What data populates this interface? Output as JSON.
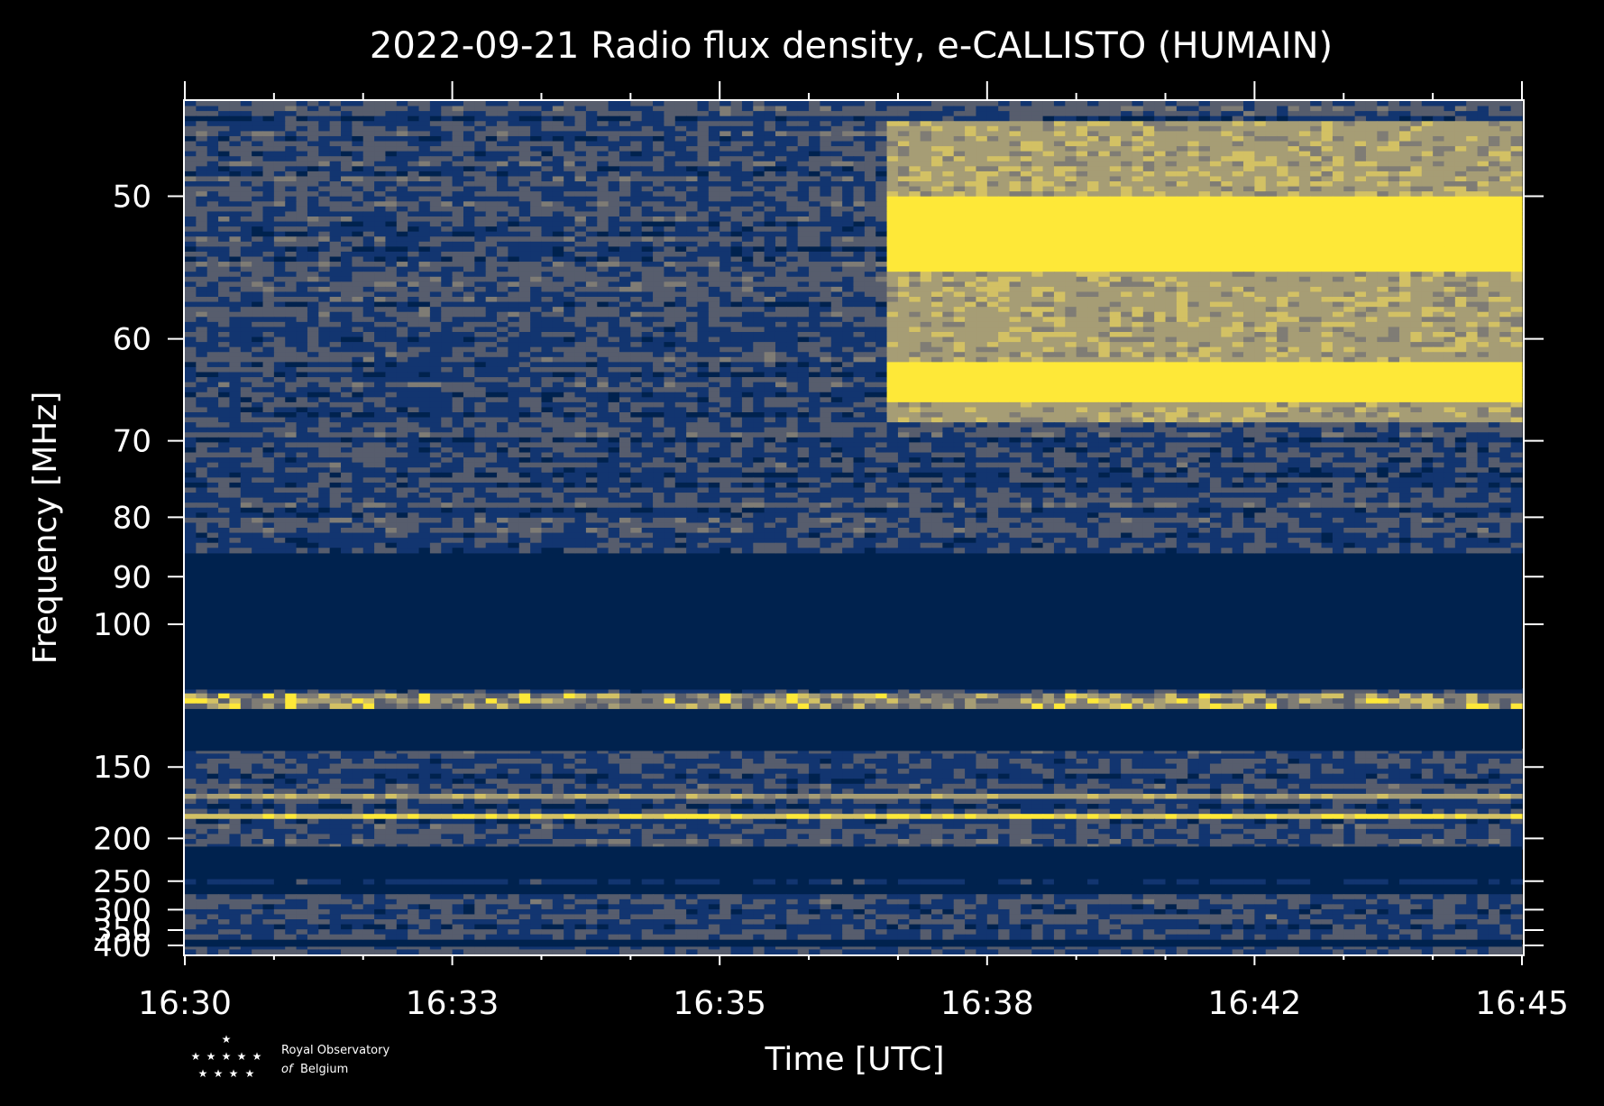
{
  "chart_data": {
    "type": "heatmap",
    "title": "2022-09-21 Radio flux density, e-CALLISTO (HUMAIN)",
    "xlabel": "Time [UTC]",
    "ylabel": "Frequency [MHz]",
    "x_ticks": [
      "16:30",
      "16:33",
      "16:35",
      "16:38",
      "16:42",
      "16:45"
    ],
    "x_range_minutes": [
      0,
      15
    ],
    "y_ticks": [
      50,
      60,
      70,
      80,
      90,
      100,
      150,
      200,
      250,
      300,
      350,
      400
    ],
    "y_scale": "reciprocal",
    "y_range_mhz": [
      45,
      437
    ],
    "colormap": [
      "#00224e",
      "#123570",
      "#575d6d",
      "#7f7c75",
      "#a69d75",
      "#d3c164",
      "#fee838"
    ],
    "background_color": "#000000",
    "blocked_bands_mhz": [
      [
        86,
        118
      ],
      [
        125,
        142
      ],
      [
        208,
        245
      ],
      [
        255,
        268
      ],
      [
        380,
        405
      ]
    ],
    "bright_bands_mhz": [
      {
        "from_mhz": 50,
        "to_mhz": 55,
        "start_min": 7.83,
        "end_min": 15,
        "level": "high"
      },
      {
        "from_mhz": 62,
        "to_mhz": 66,
        "start_min": 7.83,
        "end_min": 15,
        "level": "high"
      },
      {
        "from_mhz": 46,
        "to_mhz": 68,
        "start_min": 7.83,
        "end_min": 15,
        "level": "medium"
      },
      {
        "from_mhz": 120,
        "to_mhz": 124,
        "start_min": 0,
        "end_min": 15,
        "level": "bursty"
      },
      {
        "from_mhz": 180,
        "to_mhz": 182,
        "start_min": 0,
        "end_min": 15,
        "level": "line"
      },
      {
        "from_mhz": 164,
        "to_mhz": 168,
        "start_min": 0,
        "end_min": 15,
        "level": "medium"
      }
    ]
  },
  "logo": {
    "line1": "Royal Observatory",
    "line2_italic": "of",
    "line2": "Belgium"
  }
}
